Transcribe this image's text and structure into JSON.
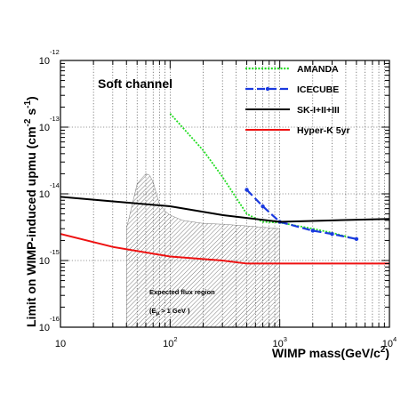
{
  "chart_data": {
    "type": "line",
    "title": "Soft channel",
    "xlabel": "WIMP mass(GeV/c",
    "xlabel_sup": "2",
    "xlabel_tail": ")",
    "ylabel": "Limit on WIMP-induced upmu (cm",
    "ylabel_sup1": "-2",
    "ylabel_mid": " s",
    "ylabel_sup2": "-1",
    "ylabel_tail": ")",
    "x_scale": "log",
    "y_scale": "log",
    "xlim": [
      10,
      10000
    ],
    "ylim": [
      1e-16,
      1e-12
    ],
    "grid": true,
    "legend_position": "top-right",
    "x_ticks": [
      {
        "base": "10",
        "exp": ""
      },
      {
        "base": "10",
        "exp": "2"
      },
      {
        "base": "10",
        "exp": "3"
      },
      {
        "base": "10",
        "exp": "4"
      }
    ],
    "y_ticks": [
      {
        "base": "10",
        "exp": "-16"
      },
      {
        "base": "10",
        "exp": "-15"
      },
      {
        "base": "10",
        "exp": "-14"
      },
      {
        "base": "10",
        "exp": "-13"
      },
      {
        "base": "10",
        "exp": "-12"
      }
    ],
    "series": [
      {
        "name": "AMANDA",
        "color": "#22dd22",
        "style": "dotted",
        "x": [
          100,
          200,
          300,
          500,
          700,
          1000,
          2000,
          3000,
          5000
        ],
        "y": [
          1.6e-13,
          4.5e-14,
          1.8e-14,
          5e-15,
          3.8e-15,
          3.7e-15,
          3e-15,
          2.6e-15,
          2.1e-15
        ]
      },
      {
        "name": "ICECUBE",
        "color": "#1a3adf",
        "style": "dashdot-markers",
        "x": [
          500,
          700,
          1000,
          2000,
          3000,
          5000
        ],
        "y": [
          1.15e-14,
          6.5e-15,
          3.8e-15,
          2.8e-15,
          2.5e-15,
          2.1e-15
        ]
      },
      {
        "name": "SK-I+II+III",
        "color": "#000000",
        "style": "solid",
        "x": [
          10,
          30,
          100,
          300,
          1000,
          3000,
          10000
        ],
        "y": [
          9e-15,
          7.7e-15,
          6.5e-15,
          4.8e-15,
          3.8e-15,
          4e-15,
          4.2e-15
        ]
      },
      {
        "name": "Hyper-K 5yr",
        "color": "#ee1111",
        "style": "solid",
        "x": [
          10,
          30,
          100,
          300,
          500,
          1000,
          3000,
          10000
        ],
        "y": [
          2.5e-15,
          1.6e-15,
          1.15e-15,
          1e-15,
          9e-16,
          9e-16,
          9e-16,
          9e-16
        ]
      }
    ],
    "region": {
      "label": "Expected flux region",
      "note_prefix": "(E",
      "note_sub": "μ",
      "note_suffix": "> 1 GeV  )",
      "x": [
        40,
        50,
        55,
        60,
        65,
        70,
        75,
        80,
        90,
        100,
        130,
        200,
        300,
        500,
        1000,
        1000,
        1000,
        40
      ],
      "y": [
        3e-15,
        1.4e-14,
        1.7e-14,
        2e-14,
        1.9e-14,
        1.5e-14,
        1e-14,
        7e-15,
        5.5e-15,
        4.8e-15,
        4e-15,
        3.6e-15,
        3.5e-15,
        3.3e-15,
        3e-15,
        1.5e-15,
        1e-16,
        1e-16
      ]
    }
  }
}
